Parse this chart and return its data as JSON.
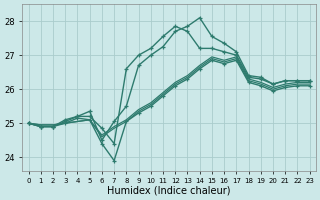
{
  "title": "",
  "xlabel": "Humidex (Indice chaleur)",
  "ylabel": "",
  "background_color": "#cce8e8",
  "grid_color": "#aacccc",
  "line_color": "#2e7b6e",
  "ylim": [
    23.6,
    28.5
  ],
  "xlim": [
    -0.5,
    23.5
  ],
  "yticks": [
    24,
    25,
    26,
    27,
    28
  ],
  "xticks": [
    0,
    1,
    2,
    3,
    4,
    5,
    6,
    7,
    8,
    9,
    10,
    11,
    12,
    13,
    14,
    15,
    16,
    17,
    18,
    19,
    20,
    21,
    22,
    23
  ],
  "lines": [
    {
      "x": [
        0,
        1,
        2,
        3,
        4,
        5,
        6,
        7,
        8,
        9,
        10,
        11,
        12,
        13,
        14,
        15,
        16,
        17,
        18,
        19,
        20,
        21,
        22,
        23
      ],
      "y": [
        25.0,
        24.9,
        24.9,
        25.05,
        25.2,
        25.35,
        24.5,
        25.05,
        25.5,
        26.7,
        27.0,
        27.25,
        27.7,
        27.85,
        28.1,
        27.55,
        27.35,
        27.1,
        26.4,
        26.35,
        26.15,
        26.25,
        26.25,
        26.25
      ],
      "marker": true,
      "lw": 1.0
    },
    {
      "x": [
        0,
        1,
        2,
        3,
        4,
        5,
        6,
        7,
        8,
        9,
        10,
        11,
        12,
        13,
        14,
        15,
        16,
        17,
        18,
        19,
        20,
        21,
        22,
        23
      ],
      "y": [
        25.0,
        24.9,
        24.9,
        25.1,
        25.2,
        25.2,
        24.85,
        24.4,
        26.6,
        27.0,
        27.2,
        27.55,
        27.85,
        27.7,
        27.2,
        27.2,
        27.1,
        27.0,
        26.35,
        26.3,
        26.15,
        26.25,
        26.25,
        26.25
      ],
      "marker": true,
      "lw": 1.0
    },
    {
      "x": [
        0,
        1,
        2,
        3,
        4,
        5,
        6,
        7,
        8,
        9,
        10,
        11,
        12,
        13,
        14,
        15,
        16,
        17,
        18,
        19,
        20,
        21,
        22,
        23
      ],
      "y": [
        25.0,
        24.95,
        24.95,
        25.0,
        25.05,
        25.1,
        24.65,
        24.9,
        25.1,
        25.4,
        25.6,
        25.9,
        26.2,
        26.4,
        26.7,
        26.95,
        26.85,
        26.95,
        26.3,
        26.2,
        26.05,
        26.15,
        26.2,
        26.2
      ],
      "marker": false,
      "lw": 0.9
    },
    {
      "x": [
        0,
        1,
        2,
        3,
        4,
        5,
        6,
        7,
        8,
        9,
        10,
        11,
        12,
        13,
        14,
        15,
        16,
        17,
        18,
        19,
        20,
        21,
        22,
        23
      ],
      "y": [
        25.0,
        24.95,
        24.95,
        25.0,
        25.05,
        25.1,
        24.6,
        24.85,
        25.05,
        25.35,
        25.55,
        25.85,
        26.15,
        26.35,
        26.65,
        26.9,
        26.8,
        26.9,
        26.25,
        26.15,
        26.0,
        26.1,
        26.15,
        26.15
      ],
      "marker": false,
      "lw": 0.9
    },
    {
      "x": [
        0,
        1,
        2,
        3,
        4,
        5,
        6,
        7,
        8,
        9,
        10,
        11,
        12,
        13,
        14,
        15,
        16,
        17,
        18,
        19,
        20,
        21,
        22,
        23
      ],
      "y": [
        25.0,
        24.9,
        24.9,
        25.0,
        25.15,
        25.1,
        24.4,
        23.9,
        25.05,
        25.3,
        25.5,
        25.8,
        26.1,
        26.3,
        26.6,
        26.85,
        26.75,
        26.85,
        26.2,
        26.1,
        25.95,
        26.05,
        26.1,
        26.1
      ],
      "marker": true,
      "lw": 1.0
    }
  ]
}
